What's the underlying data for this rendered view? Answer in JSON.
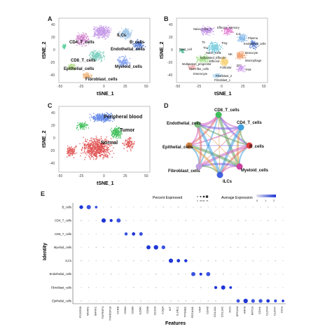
{
  "panels": {
    "A": {
      "letter": "A",
      "x_title": "tSNE_1",
      "y_title": "tSNE_2",
      "x_ticks": [
        "-50",
        "-25",
        "0",
        "25",
        "50"
      ],
      "y_ticks": [
        "40",
        "20",
        "0",
        "-20",
        "-40"
      ],
      "labels": [
        "ILCs",
        "B_cells",
        "CD4_T_cells",
        "Endothelial_cells",
        "CD8_T_cells",
        "Myeloid_cells",
        "Epithelial_cells",
        "Fibroblast_cells"
      ]
    },
    "B": {
      "letter": "B",
      "x_title": "tSNE_1",
      "y_title": "tSNE_2",
      "x_ticks": [
        "-50",
        "-25",
        "0",
        "25",
        "50"
      ],
      "y_ticks": [
        "40",
        "20",
        "0",
        "-20",
        "-40"
      ],
      "labels": [
        "Naive_CD4_T",
        "Effector_Memory",
        "ILC",
        "Plasma",
        "Endothelial_cells",
        "Mast_cell",
        "Th",
        "Treg",
        "Monocyte",
        "Th1",
        "NK",
        "Macrophage",
        "Naive_CD8",
        "Exhausted_Effector",
        "Effector",
        "DC",
        "Multipotent_progenitor",
        "TAM",
        "Stem like_cells",
        "Follicular",
        "Enterocyte",
        "Fibroblast_2",
        "Fibroblast_1"
      ]
    },
    "C": {
      "letter": "C",
      "x_title": "tSNE_1",
      "y_title": "tSNE_2",
      "x_ticks": [
        "-50",
        "-25",
        "0",
        "25",
        "50"
      ],
      "y_ticks": [
        "40",
        "20",
        "0",
        "-20",
        "-40"
      ],
      "labels": [
        "Peripheral blood",
        "Tumor",
        "Normal"
      ]
    },
    "D": {
      "letter": "D",
      "nodes": [
        "CD8_T_cells",
        "CD4_T_cells",
        "B_cells",
        "Myeloid_cells",
        "ILCs",
        "Fibroblast_cells",
        "Epithelial_cells",
        "Endothelial_cells"
      ]
    },
    "E": {
      "letter": "E",
      "y_title": "Identity",
      "x_title": "Features",
      "legend_pct_title": "Percent Expressed",
      "legend_pct_ticks": [
        "0",
        "25",
        "50",
        "75"
      ],
      "legend_avg_title": "Average Expression",
      "legend_avg_ticks": [
        "0",
        "1",
        "2"
      ],
      "identities": [
        "B_cells",
        "CD4_T_cells",
        "CD8_T_cells",
        "Myeloid_cells",
        "ILCs",
        "Endothelial_cells",
        "Fibroblast_cells",
        "Epithelial_cells"
      ],
      "features": [
        "FCGR2B",
        "MS4A1",
        "BANK1",
        "TNFRSF4",
        "TNFRSF18",
        "CCR8",
        "CD8A",
        "CD8B",
        "GZMK",
        "CD68",
        "CD163",
        "C1QA",
        "KIT",
        "IL1RL1",
        "TPSAB1",
        "PECAM1",
        "VWF",
        "CDH5",
        "COL1A1",
        "COL1A2",
        "DCN",
        "EPCAM",
        "KRT8",
        "KRT19",
        "CDH1",
        "CLDN4",
        "CLDN7",
        "TFF3"
      ]
    }
  }
}
